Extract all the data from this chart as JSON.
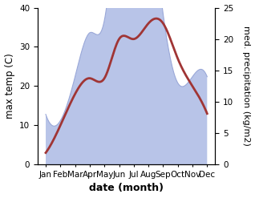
{
  "months": [
    "Jan",
    "Feb",
    "Mar",
    "Apr",
    "May",
    "Jun",
    "Jul",
    "Aug",
    "Sep",
    "Oct",
    "Nov",
    "Dec"
  ],
  "temperature": [
    3,
    10,
    18,
    22,
    22,
    32,
    32,
    36,
    36,
    27,
    20,
    13
  ],
  "precipitation": [
    8,
    7,
    14,
    21,
    23,
    40,
    37,
    39,
    24,
    13,
    14,
    14
  ],
  "temp_color": "#a03535",
  "precip_fill_color": "#b8c4e8",
  "precip_edge_color": "#9aa8d8",
  "ylim_left": [
    0,
    40
  ],
  "ylim_right": [
    0,
    25
  ],
  "xlabel": "date (month)",
  "ylabel_left": "max temp (C)",
  "ylabel_right": "med. precipitation (kg/m2)",
  "yticks_left": [
    0,
    10,
    20,
    30,
    40
  ],
  "yticks_right": [
    0,
    5,
    10,
    15,
    20,
    25
  ],
  "tick_fontsize": 7.5,
  "label_fontsize": 8.5,
  "xlabel_fontsize": 9,
  "line_width": 2.0,
  "fig_width": 3.18,
  "fig_height": 2.47,
  "dpi": 100
}
